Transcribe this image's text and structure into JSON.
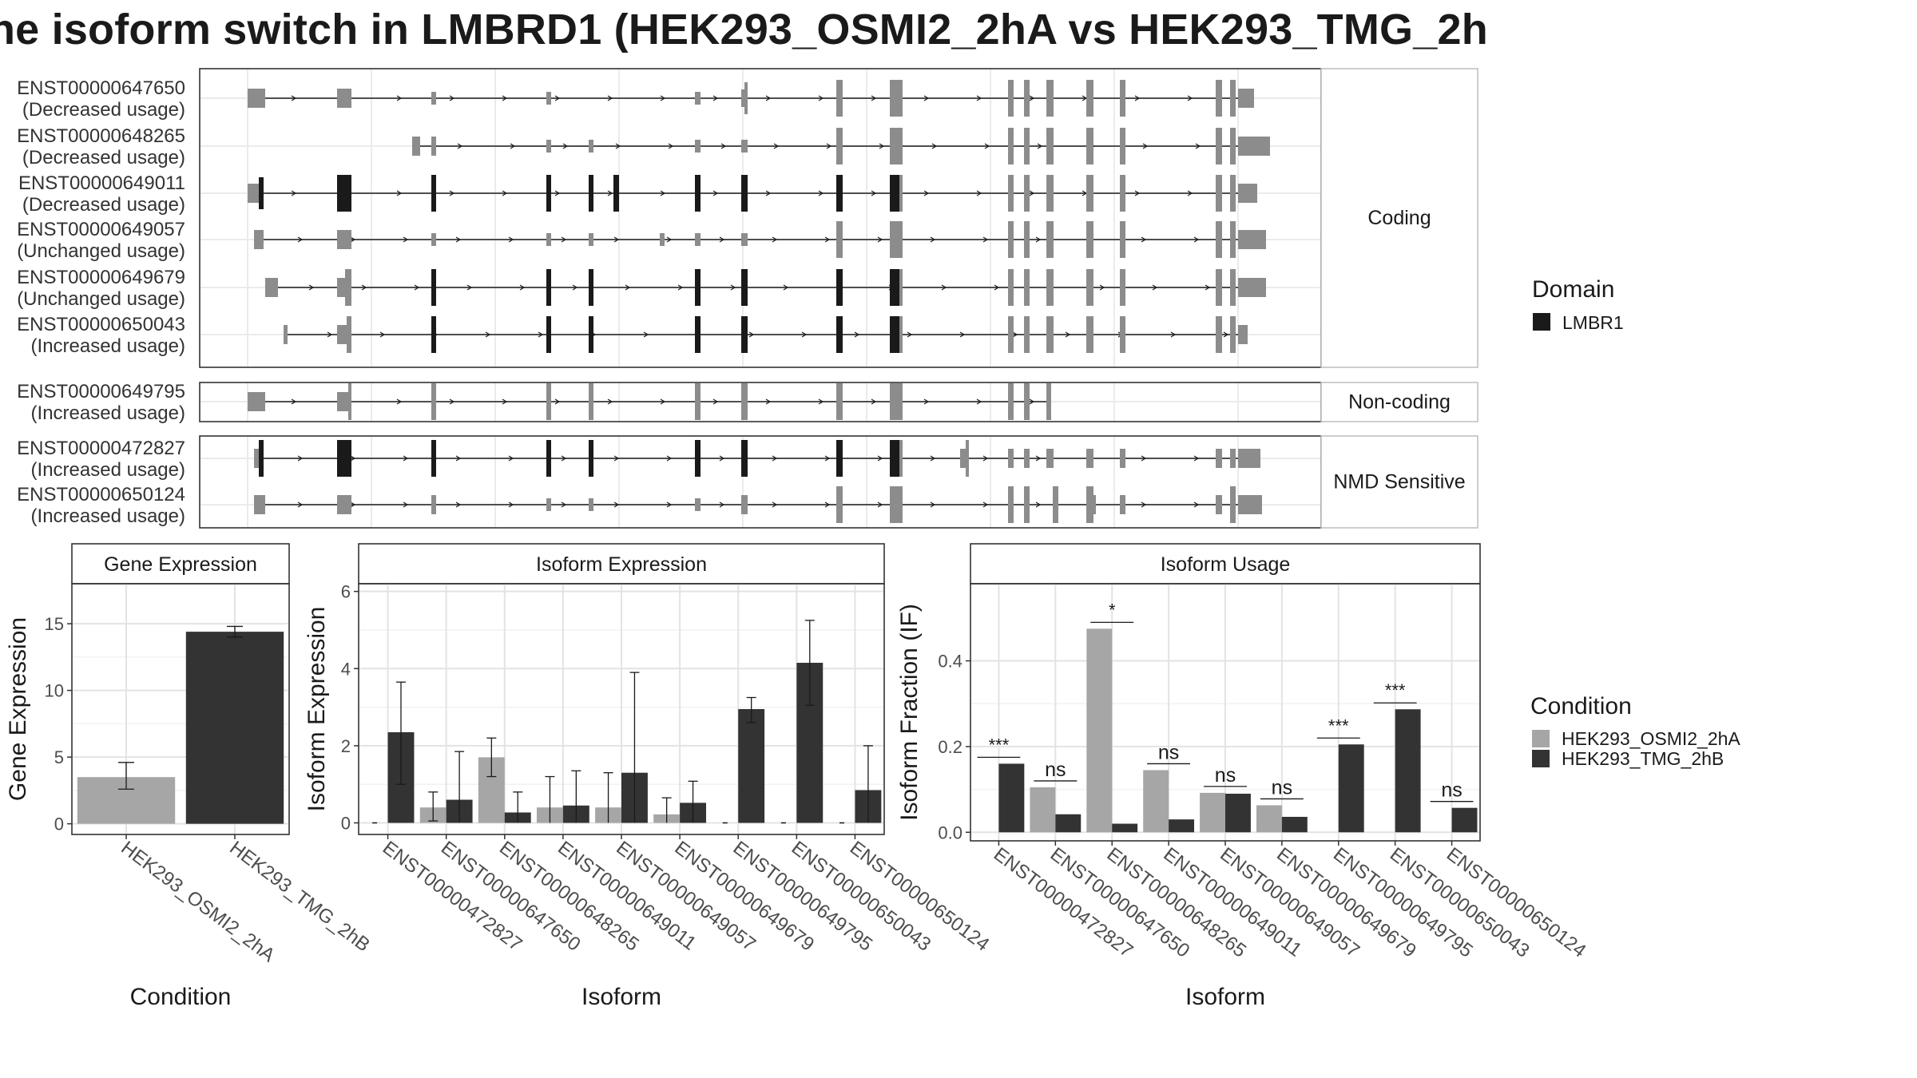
{
  "title": "ne isoform switch in LMBRD1 (HEK293_OSMI2_2hA vs HEK293_TMG_2h",
  "structure": {
    "categories": [
      {
        "label": "Coding",
        "isoforms": [
          {
            "id": "ENST00000647650",
            "usage": "(Decreased usage)"
          },
          {
            "id": "ENST00000648265",
            "usage": "(Decreased usage)"
          },
          {
            "id": "ENST00000649011",
            "usage": "(Decreased usage)"
          },
          {
            "id": "ENST00000649057",
            "usage": "(Unchanged usage)"
          },
          {
            "id": "ENST00000649679",
            "usage": "(Unchanged usage)"
          },
          {
            "id": "ENST00000650043",
            "usage": "(Increased usage)"
          }
        ]
      },
      {
        "label": "Non-coding",
        "isoforms": [
          {
            "id": "ENST00000649795",
            "usage": "(Increased usage)"
          }
        ]
      },
      {
        "label": "NMD Sensitive",
        "isoforms": [
          {
            "id": "ENST00000472827",
            "usage": "(Increased usage)"
          },
          {
            "id": "ENST00000650124",
            "usage": "(Increased usage)"
          }
        ]
      }
    ],
    "domain_legend": {
      "title": "Domain",
      "items": [
        {
          "label": "LMBR1",
          "color": "#1a1a1a"
        }
      ]
    }
  },
  "condition_legend": {
    "title": "Condition",
    "items": [
      {
        "label": "HEK293_OSMI2_2hA",
        "color": "#a6a6a6"
      },
      {
        "label": "HEK293_TMG_2hB",
        "color": "#333333"
      }
    ]
  },
  "chart_data": [
    {
      "type": "bar",
      "title": "Gene Expression",
      "xlabel": "Condition",
      "ylabel": "Gene Expression",
      "categories": [
        "HEK293_OSMI2_2hA",
        "HEK293_TMG_2hB"
      ],
      "values": [
        3.5,
        14.4
      ],
      "error_low": [
        2.6,
        14.0
      ],
      "error_high": [
        4.6,
        14.8
      ],
      "colors": [
        "#a6a6a6",
        "#333333"
      ],
      "ylim": [
        -0.8,
        18
      ],
      "yticks": [
        0,
        5,
        10,
        15
      ]
    },
    {
      "type": "bar",
      "title": "Isoform Expression",
      "xlabel": "Isoform",
      "ylabel": "Isoform Expression",
      "categories": [
        "ENST00000472827",
        "ENST00000647650",
        "ENST00000648265",
        "ENST00000649011",
        "ENST00000649057",
        "ENST00000649679",
        "ENST00000649795",
        "ENST00000650043",
        "ENST00000650124"
      ],
      "ylim": [
        -0.3,
        6.2
      ],
      "yticks": [
        0,
        2,
        4,
        6
      ],
      "series": [
        {
          "name": "HEK293_OSMI2_2hA",
          "values": [
            0.0,
            0.4,
            1.7,
            0.4,
            0.4,
            0.22,
            0.0,
            0.0,
            0.0
          ],
          "error_low": [
            0.0,
            0.05,
            1.2,
            0.0,
            0.0,
            0.0,
            0.0,
            0.0,
            0.0
          ],
          "error_high": [
            0.0,
            0.8,
            2.2,
            1.2,
            1.3,
            0.65,
            0.0,
            0.0,
            0.0
          ]
        },
        {
          "name": "HEK293_TMG_2hB",
          "values": [
            2.35,
            0.6,
            0.27,
            0.45,
            1.3,
            0.52,
            2.95,
            4.15,
            0.85
          ],
          "error_low": [
            1.0,
            0.0,
            0.0,
            0.0,
            0.0,
            0.0,
            2.6,
            3.05,
            0.0
          ],
          "error_high": [
            3.65,
            1.85,
            0.8,
            1.35,
            3.9,
            1.08,
            3.25,
            5.25,
            2.0
          ]
        }
      ]
    },
    {
      "type": "bar",
      "title": "Isoform Usage",
      "xlabel": "Isoform",
      "ylabel": "Isoform Fraction (IF)",
      "categories": [
        "ENST00000472827",
        "ENST00000647650",
        "ENST00000648265",
        "ENST00000649011",
        "ENST00000649057",
        "ENST00000649679",
        "ENST00000649795",
        "ENST00000650043",
        "ENST00000650124"
      ],
      "ylim": [
        -0.02,
        0.58
      ],
      "yticks": [
        0.0,
        0.2,
        0.4
      ],
      "ytick_labels": [
        "0.0",
        "0.2",
        "0.4"
      ],
      "series": [
        {
          "name": "HEK293_OSMI2_2hA",
          "values": [
            0.0,
            0.105,
            0.475,
            0.145,
            0.092,
            0.063,
            0.0,
            0.0,
            0.0
          ]
        },
        {
          "name": "HEK293_TMG_2hB",
          "values": [
            0.16,
            0.042,
            0.02,
            0.03,
            0.09,
            0.036,
            0.205,
            0.287,
            0.057
          ]
        }
      ],
      "significance": [
        "***",
        "ns",
        "*",
        "ns",
        "ns",
        "ns",
        "***",
        "***",
        "ns"
      ]
    }
  ]
}
